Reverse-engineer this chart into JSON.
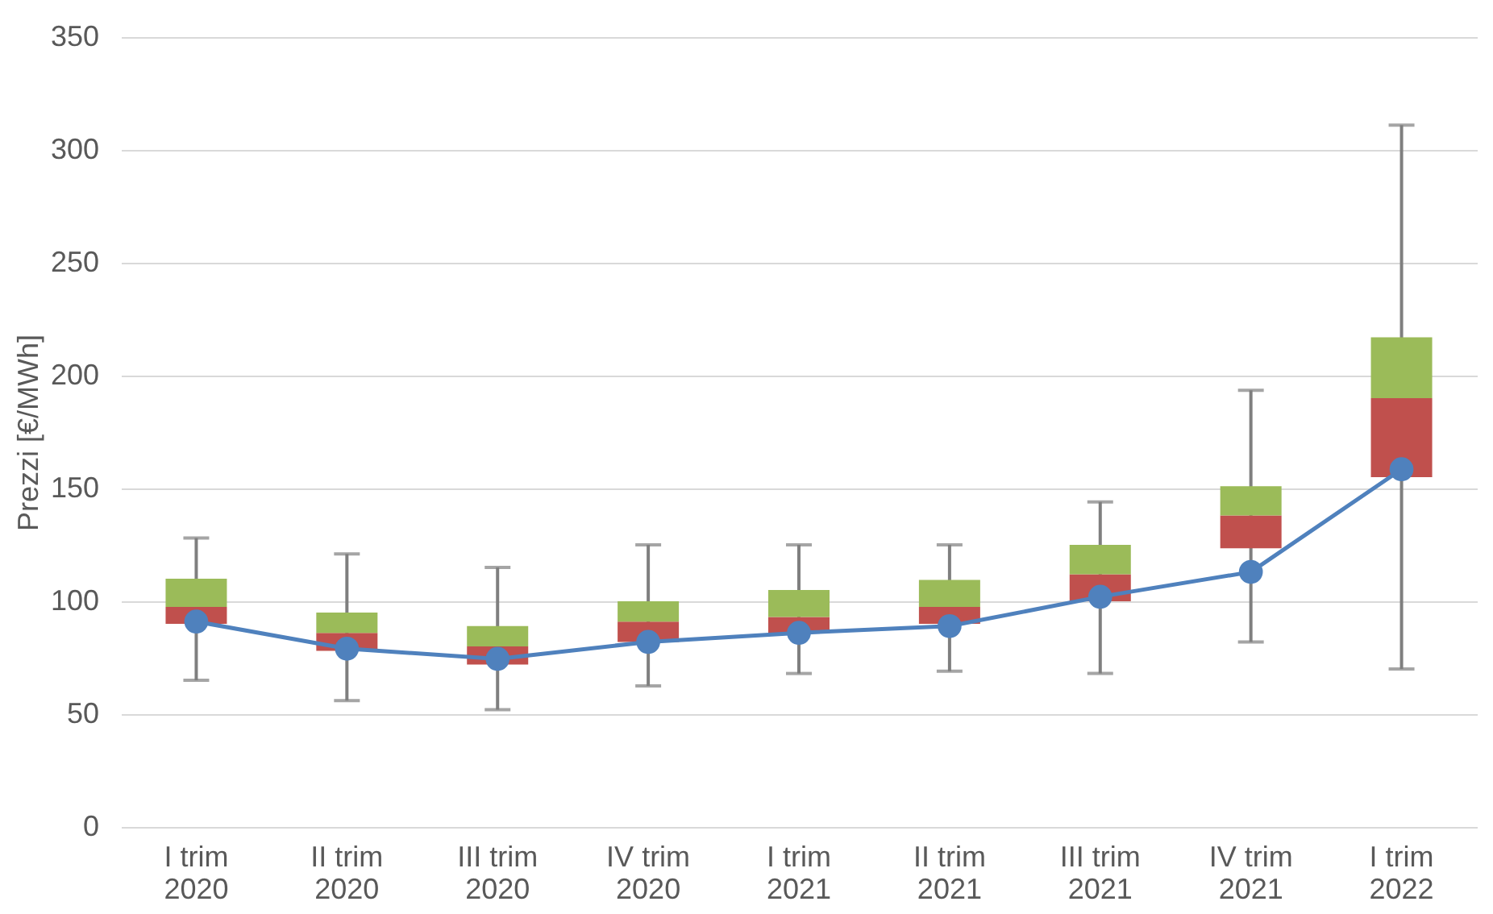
{
  "chart_data": {
    "type": "box",
    "ylabel": "Prezzi [€/MWh]",
    "categories": [
      "I trim\n2020",
      "II trim\n2020",
      "III trim\n2020",
      "IV trim\n2020",
      "I trim\n2021",
      "II trim\n2021",
      "III trim\n2021",
      "IV trim\n2021",
      "I trim\n2022"
    ],
    "ylim": [
      0,
      350
    ],
    "yticks": [
      0,
      50,
      100,
      150,
      200,
      250,
      300,
      350
    ],
    "grid": "y",
    "series": [
      {
        "colors": [
          [
            "#c0504d",
            "#9bbb59"
          ],
          [
            "#c0504d",
            "#9bbb59"
          ],
          [
            "#c0504d",
            "#9bbb59"
          ],
          [
            "#c0504d",
            "#9bbb59"
          ],
          [
            "#c0504d",
            "#9bbb59"
          ],
          [
            "#c0504d",
            "#9bbb59"
          ],
          [
            "#c0504d",
            "#9bbb59"
          ],
          [
            "#c0504d",
            "#9bbb59"
          ],
          [
            "#c0504d",
            "#9bbb59"
          ]
        ],
        "boxes": [
          {
            "low": 65,
            "q1": 90,
            "median": 97.5,
            "q3": 110,
            "high": 128
          },
          {
            "low": 56,
            "q1": 78,
            "median": 86,
            "q3": 95,
            "high": 121
          },
          {
            "low": 52,
            "q1": 72,
            "median": 80,
            "q3": 89,
            "high": 115
          },
          {
            "low": 62.5,
            "q1": 82,
            "median": 91,
            "q3": 100,
            "high": 125
          },
          {
            "low": 68,
            "q1": 86,
            "median": 93,
            "q3": 105,
            "high": 125
          },
          {
            "low": 69,
            "q1": 90,
            "median": 97.5,
            "q3": 109.5,
            "high": 125
          },
          {
            "low": 68,
            "q1": 100,
            "median": 112,
            "q3": 125,
            "high": 144
          },
          {
            "low": 82,
            "q1": 123.5,
            "median": 138,
            "q3": 151,
            "high": 193.5
          },
          {
            "low": 70,
            "q1": 155,
            "median": 190,
            "q3": 217,
            "high": 311
          }
        ]
      },
      {
        "type": "line",
        "color": "#4f81bd",
        "marker": "circle",
        "values": [
          91,
          79,
          74.5,
          82,
          86,
          89,
          102,
          113,
          158.5
        ]
      }
    ]
  }
}
